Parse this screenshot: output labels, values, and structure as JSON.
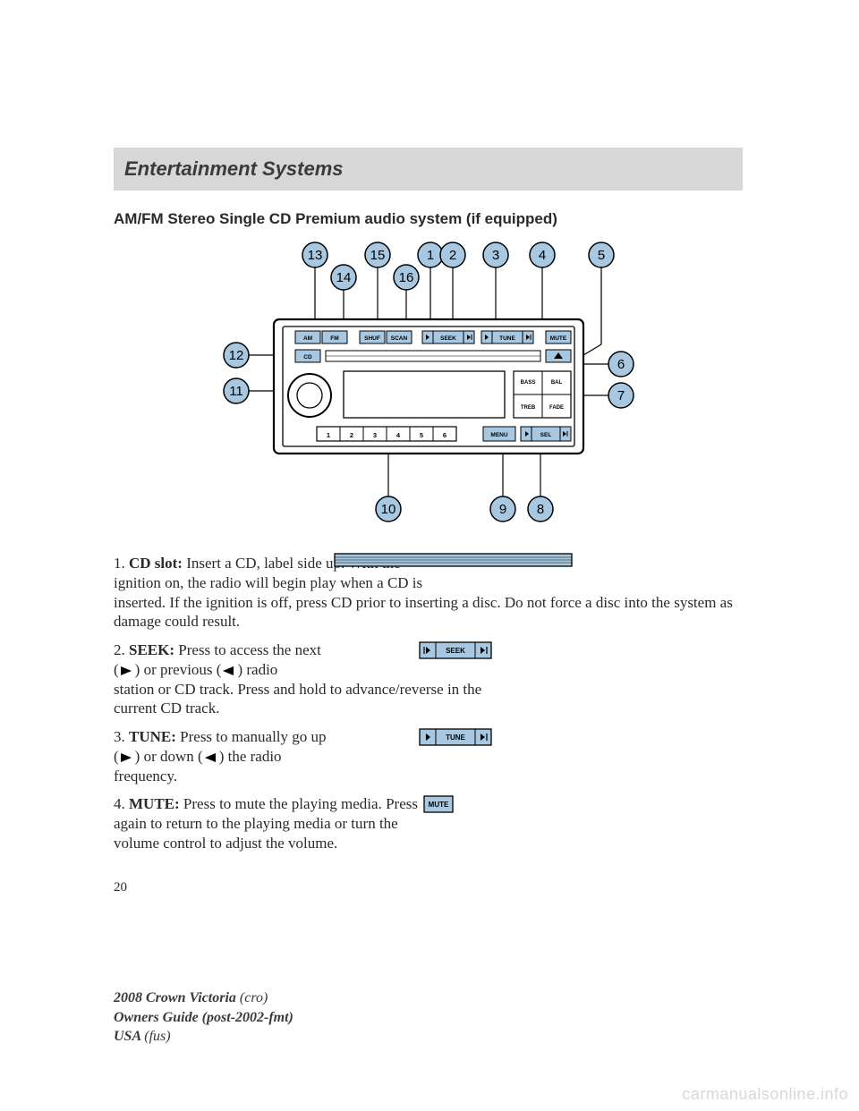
{
  "header": {
    "title": "Entertainment Systems"
  },
  "subheading": "AM/FM Stereo Single CD Premium audio system (if equipped)",
  "diagram": {
    "callouts_top": [
      "13",
      "14",
      "15",
      "16",
      "1",
      "2",
      "3",
      "4",
      "5"
    ],
    "callouts_right": [
      "6",
      "7"
    ],
    "callouts_left": [
      "12",
      "11"
    ],
    "callouts_bottom": [
      "10",
      "9",
      "8"
    ],
    "button_labels": {
      "am": "AM",
      "fm": "FM",
      "shuf": "SHUF",
      "scan": "SCAN",
      "seek": "SEEK",
      "tune": "TUNE",
      "mute": "MUTE",
      "cd": "CD",
      "eject": "▲",
      "bass": "BASS",
      "bal": "BAL",
      "treb": "TREB",
      "fade": "FADE",
      "menu": "MENU",
      "sel": "SEL",
      "presets": [
        "1",
        "2",
        "3",
        "4",
        "5",
        "6"
      ]
    },
    "callout_circle": {
      "fill": "#a7c8e0",
      "stroke": "#000000",
      "r": 15,
      "font_size": 15
    },
    "leader_stroke": "#000000",
    "radio": {
      "stroke": "#0b0b0b",
      "fill": "#ffffff",
      "btn_fill": "#a7c8e0"
    }
  },
  "items": [
    {
      "n": "1",
      "label": "CD slot:",
      "text_a": "Insert a CD, label side up. With the ignition on, the radio will begin play when a CD is",
      "text_b": "inserted. If the ignition is off, press CD prior to inserting a disc. Do not force a disc into the system as damage could result.",
      "illus": "cdslot"
    },
    {
      "n": "2",
      "label": "SEEK:",
      "text_a": "Press to access the next",
      "mid_a": "(",
      "mid_b": ") or previous (",
      "mid_c": ") radio",
      "text_b": "station or CD track. Press and hold to advance/reverse in the current CD track.",
      "illus": "seek"
    },
    {
      "n": "3",
      "label": "TUNE:",
      "text_a": "Press to manually go up",
      "mid_a": "(",
      "mid_b": ") or down (",
      "mid_c": ") the radio",
      "text_b": "frequency.",
      "illus": "tune"
    },
    {
      "n": "4",
      "label": "MUTE:",
      "text_a": "Press to mute the playing media. Press again to return to the playing media or turn the volume control to adjust the volume.",
      "illus": "mute"
    }
  ],
  "page_number": "20",
  "footer": {
    "line1a": "2008 Crown Victoria ",
    "line1b": "(cro)",
    "line2a": "Owners Guide (post-2002-fmt)",
    "line3a": "USA ",
    "line3b": "(fus)"
  },
  "watermark": "carmanualsonline.info",
  "colors": {
    "header_bg": "#d7d7d7",
    "text": "#2a2a2a",
    "accent": "#a7c8e0",
    "line": "#000000",
    "watermark": "#d8d8d8"
  }
}
